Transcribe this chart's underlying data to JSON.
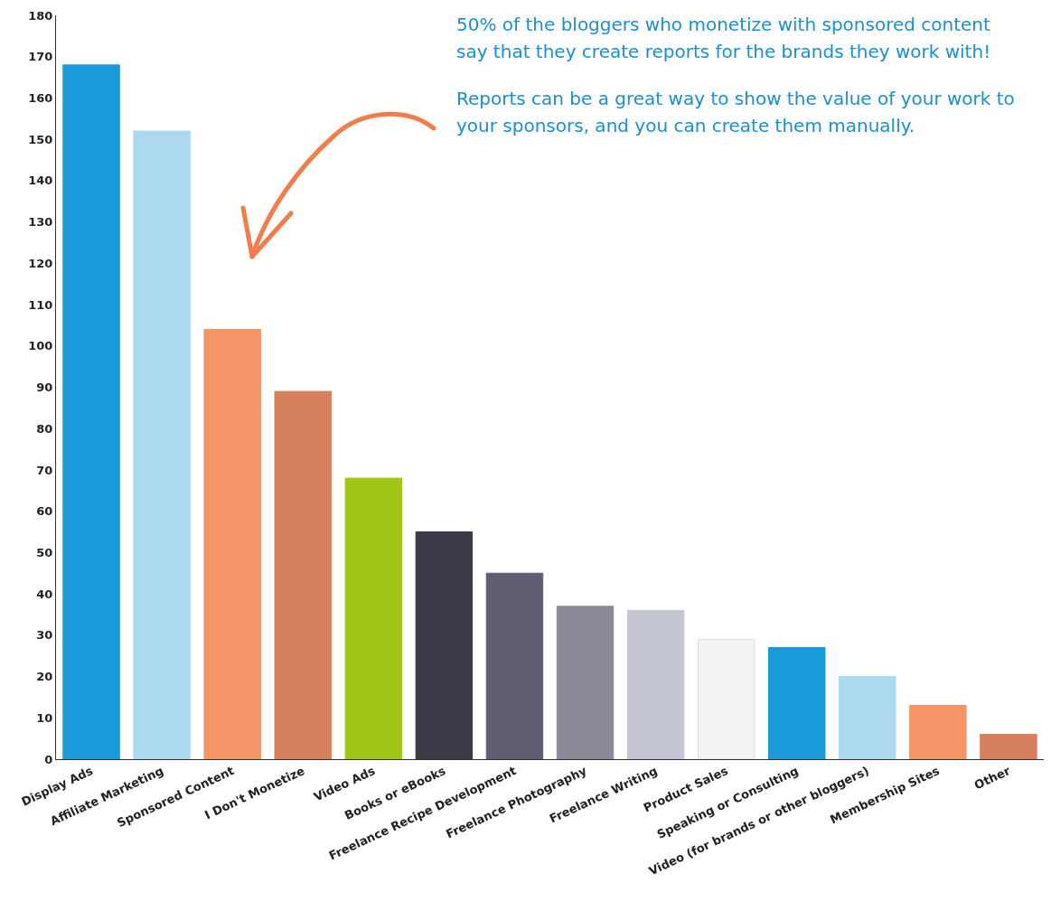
{
  "chart_data": {
    "type": "bar",
    "categories": [
      "Display Ads",
      "Affiliate Marketing",
      "Sponsored Content",
      "I Don't Monetize",
      "Video Ads",
      "Books or eBooks",
      "Freelance Recipe Development",
      "Freelance Photography",
      "Freelance Writing",
      "Product Sales",
      "Speaking or Consulting",
      "Video (for brands or other bloggers)",
      "Membership Sites",
      "Other"
    ],
    "values": [
      168,
      152,
      104,
      89,
      68,
      55,
      45,
      37,
      36,
      29,
      27,
      20,
      13,
      6
    ],
    "colors": [
      "#1a9ad9",
      "#acd9f0",
      "#f39566",
      "#d6805e",
      "#a2c617",
      "#3a3a46",
      "#5e5e70",
      "#8a8a96",
      "#c4c5d2",
      "#f3f3f5",
      "#1a9ad9",
      "#acd9f0",
      "#f39566",
      "#d6805e"
    ],
    "ylim": [
      0,
      180
    ],
    "yticks": [
      0,
      10,
      20,
      30,
      40,
      50,
      60,
      70,
      80,
      90,
      100,
      110,
      120,
      130,
      140,
      150,
      160,
      170,
      180
    ],
    "grid": false,
    "legend": false,
    "annotations": [
      "50% of the bloggers who monetize with sponsored content say that they create reports for the brands they work with!",
      "Reports can be a great way to show the value of your work to your sponsors, and you can create them manually."
    ]
  }
}
